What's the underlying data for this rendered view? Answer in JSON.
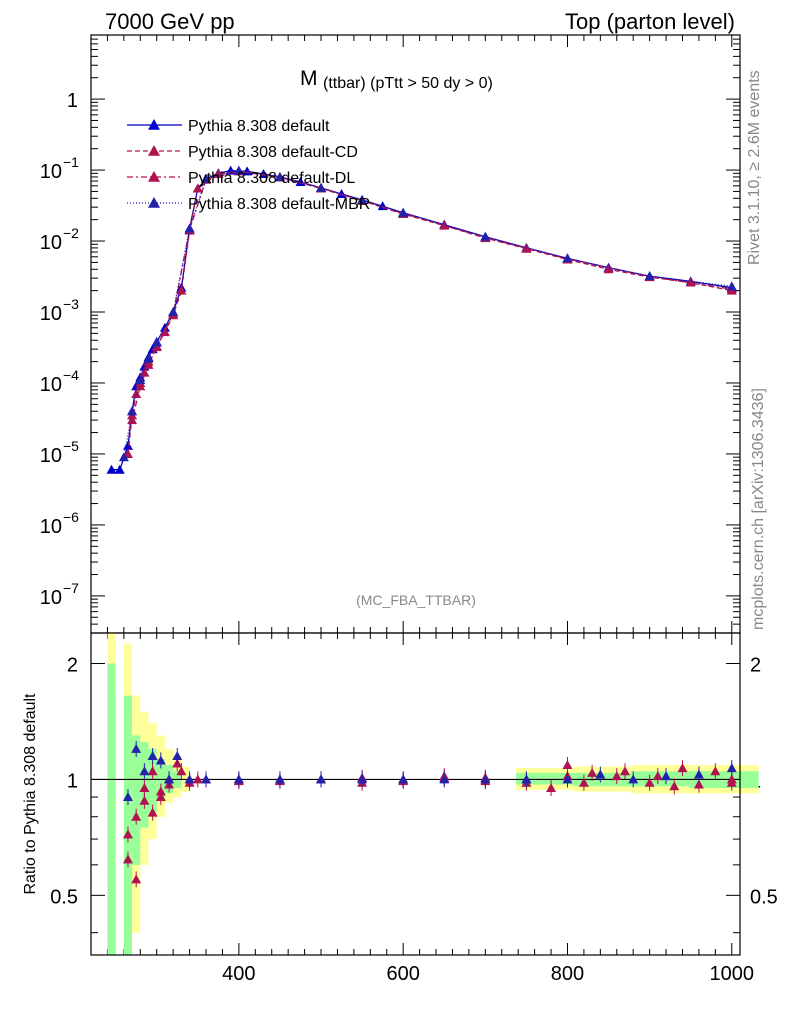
{
  "header": {
    "left": "7000 GeV pp",
    "right": "Top (parton level)"
  },
  "side_labels": {
    "rivet": "Rivet 3.1.10, ≥ 2.6M events",
    "mcplots": "mcplots.cern.ch [arXiv:1306.3436]"
  },
  "chart_data": [
    {
      "type": "line",
      "title_main": "M",
      "title_sub": "(ttbar) (pTtt > 50 dy > 0)",
      "watermark": "(MC_FBA_TTBAR)",
      "xlabel": "",
      "ylabel": "",
      "yscale": "log",
      "xlim": [
        220,
        1010
      ],
      "ylim": [
        3e-08,
        8
      ],
      "yticks": [
        {
          "v": 1e-07,
          "base": "10",
          "exp": "−7"
        },
        {
          "v": 1e-06,
          "base": "10",
          "exp": "−6"
        },
        {
          "v": 1e-05,
          "base": "10",
          "exp": "−5"
        },
        {
          "v": 0.0001,
          "base": "10",
          "exp": "−4"
        },
        {
          "v": 0.001,
          "base": "10",
          "exp": "−3"
        },
        {
          "v": 0.01,
          "base": "10",
          "exp": "−2"
        },
        {
          "v": 0.1,
          "base": "10",
          "exp": "−1"
        },
        {
          "v": 1,
          "base": "1",
          "exp": ""
        }
      ],
      "legend_position": "top-left",
      "series": [
        {
          "name": "Pythia 8.308 default",
          "color": "#0000cc",
          "dash": "none",
          "marker_fill": "#0000cc",
          "points": [
            [
              245,
              6e-06
            ],
            [
              255,
              6e-06
            ],
            [
              265,
              1.3e-05
            ],
            [
              270,
              4e-05
            ],
            [
              275,
              9e-05
            ],
            [
              280,
              0.00012
            ],
            [
              285,
              0.00017
            ],
            [
              290,
              0.00023
            ],
            [
              295,
              0.0003
            ],
            [
              300,
              0.00038
            ],
            [
              310,
              0.0006
            ],
            [
              320,
              0.001
            ],
            [
              330,
              0.0022
            ],
            [
              340,
              0.015
            ],
            [
              350,
              0.055
            ],
            [
              360,
              0.075
            ],
            [
              375,
              0.09
            ],
            [
              390,
              0.098
            ],
            [
              410,
              0.096
            ],
            [
              430,
              0.088
            ],
            [
              450,
              0.08
            ],
            [
              475,
              0.068
            ],
            [
              500,
              0.056
            ],
            [
              525,
              0.046
            ],
            [
              550,
              0.038
            ],
            [
              575,
              0.031
            ],
            [
              600,
              0.025
            ],
            [
              650,
              0.017
            ],
            [
              700,
              0.0115
            ],
            [
              750,
              0.008
            ],
            [
              800,
              0.0057
            ],
            [
              850,
              0.0042
            ],
            [
              900,
              0.0032
            ],
            [
              950,
              0.0027
            ],
            [
              1000,
              0.0022
            ]
          ]
        },
        {
          "name": "Pythia 8.308 default-CD",
          "color": "#b0134f",
          "dash": "5,3",
          "marker_fill": "#b0134f",
          "points": [
            [
              265,
              1e-05
            ],
            [
              270,
              3.5e-05
            ],
            [
              275,
              7e-05
            ],
            [
              280,
              0.0001
            ],
            [
              285,
              0.00014
            ],
            [
              290,
              0.0002
            ],
            [
              300,
              0.00033
            ],
            [
              310,
              0.00052
            ],
            [
              320,
              0.0009
            ],
            [
              330,
              0.002
            ],
            [
              340,
              0.014
            ],
            [
              350,
              0.055
            ],
            [
              375,
              0.088
            ],
            [
              400,
              0.096
            ],
            [
              450,
              0.079
            ],
            [
              500,
              0.055
            ],
            [
              550,
              0.037
            ],
            [
              600,
              0.024
            ],
            [
              650,
              0.0165
            ],
            [
              700,
              0.011
            ],
            [
              750,
              0.0078
            ],
            [
              800,
              0.0055
            ],
            [
              850,
              0.004
            ],
            [
              900,
              0.0031
            ],
            [
              950,
              0.0026
            ],
            [
              1000,
              0.002
            ]
          ]
        },
        {
          "name": "Pythia 8.308 default-DL",
          "color": "#b0134f",
          "dash": "6,3,2,3",
          "marker_fill": "#b0134f",
          "points": [
            [
              270,
              3e-05
            ],
            [
              280,
              9e-05
            ],
            [
              290,
              0.00018
            ],
            [
              300,
              0.00032
            ],
            [
              320,
              0.00095
            ],
            [
              340,
              0.0145
            ],
            [
              360,
              0.073
            ],
            [
              400,
              0.097
            ],
            [
              450,
              0.079
            ],
            [
              500,
              0.056
            ],
            [
              550,
              0.037
            ],
            [
              600,
              0.0245
            ],
            [
              700,
              0.0112
            ],
            [
              800,
              0.0056
            ],
            [
              900,
              0.00315
            ],
            [
              1000,
              0.0021
            ]
          ]
        },
        {
          "name": "Pythia 8.308 default-MBR",
          "color": "#2222aa",
          "dash": "1,2",
          "marker_fill": "#2222aa",
          "points": [
            [
              260,
              9e-06
            ],
            [
              270,
              4e-05
            ],
            [
              280,
              0.00011
            ],
            [
              290,
              0.00022
            ],
            [
              300,
              0.00037
            ],
            [
              320,
              0.001
            ],
            [
              340,
              0.015
            ],
            [
              360,
              0.075
            ],
            [
              400,
              0.098
            ],
            [
              450,
              0.08
            ],
            [
              500,
              0.056
            ],
            [
              550,
              0.038
            ],
            [
              600,
              0.025
            ],
            [
              700,
              0.0115
            ],
            [
              800,
              0.0057
            ],
            [
              900,
              0.0032
            ],
            [
              1000,
              0.0023
            ]
          ]
        }
      ]
    },
    {
      "type": "scatter",
      "ylabel": "Ratio to Pythia 8.308 default",
      "xlim": [
        220,
        1010
      ],
      "ylim": [
        0.35,
        2.4
      ],
      "yscale": "log",
      "xticks": [
        400,
        600,
        800,
        1000
      ],
      "xtick_labels": [
        "400",
        "600",
        "800",
        "1000"
      ],
      "yticks": [
        0.5,
        1,
        2
      ],
      "ytick_labels": [
        "0.5",
        "1",
        "2"
      ],
      "reference_line": 1,
      "bands": [
        {
          "x": 245,
          "y_lo": 0.35,
          "y_hi": 2.4,
          "color": "yellow"
        },
        {
          "x": 265,
          "y_lo": 0.35,
          "y_hi": 2.25,
          "color": "yellow"
        },
        {
          "x": 275,
          "y_lo": 0.4,
          "y_hi": 1.65,
          "color": "yellow"
        },
        {
          "x": 285,
          "y_lo": 0.6,
          "y_hi": 1.5,
          "color": "yellow"
        },
        {
          "x": 295,
          "y_lo": 0.7,
          "y_hi": 1.4,
          "color": "yellow"
        },
        {
          "x": 305,
          "y_lo": 0.8,
          "y_hi": 1.3,
          "color": "yellow"
        },
        {
          "x": 315,
          "y_lo": 0.87,
          "y_hi": 1.2,
          "color": "yellow"
        },
        {
          "x": 325,
          "y_lo": 0.9,
          "y_hi": 1.15,
          "color": "yellow"
        },
        {
          "x": 335,
          "y_lo": 0.93,
          "y_hi": 1.08,
          "color": "yellow"
        },
        {
          "x": 780,
          "y_lo": 0.94,
          "y_hi": 1.07,
          "color": "yellow"
        },
        {
          "x": 850,
          "y_lo": 0.93,
          "y_hi": 1.08,
          "color": "yellow"
        },
        {
          "x": 920,
          "y_lo": 0.92,
          "y_hi": 1.09,
          "color": "yellow"
        },
        {
          "x": 990,
          "y_lo": 0.92,
          "y_hi": 1.09,
          "color": "yellow"
        },
        {
          "x": 245,
          "y_lo": 0.35,
          "y_hi": 2.0,
          "color": "green"
        },
        {
          "x": 265,
          "y_lo": 0.35,
          "y_hi": 1.65,
          "color": "green"
        },
        {
          "x": 275,
          "y_lo": 0.6,
          "y_hi": 1.3,
          "color": "green"
        },
        {
          "x": 285,
          "y_lo": 0.75,
          "y_hi": 1.25,
          "color": "green"
        },
        {
          "x": 295,
          "y_lo": 0.82,
          "y_hi": 1.2,
          "color": "green"
        },
        {
          "x": 305,
          "y_lo": 0.88,
          "y_hi": 1.13,
          "color": "green"
        },
        {
          "x": 315,
          "y_lo": 0.92,
          "y_hi": 1.09,
          "color": "green"
        },
        {
          "x": 325,
          "y_lo": 0.95,
          "y_hi": 1.05,
          "color": "green"
        },
        {
          "x": 780,
          "y_lo": 0.97,
          "y_hi": 1.04,
          "color": "green"
        },
        {
          "x": 850,
          "y_lo": 0.96,
          "y_hi": 1.04,
          "color": "green"
        },
        {
          "x": 920,
          "y_lo": 0.96,
          "y_hi": 1.05,
          "color": "green"
        },
        {
          "x": 990,
          "y_lo": 0.95,
          "y_hi": 1.05,
          "color": "green"
        }
      ],
      "series": [
        {
          "name": "Pythia 8.308 default-CD",
          "color": "#b0134f",
          "points": [
            [
              265,
              0.72
            ],
            [
              275,
              0.55
            ],
            [
              285,
              0.88
            ],
            [
              295,
              0.82
            ],
            [
              305,
              0.9
            ],
            [
              315,
              1.0
            ],
            [
              325,
              1.1
            ],
            [
              340,
              0.98
            ],
            [
              360,
              1.0
            ],
            [
              400,
              0.99
            ],
            [
              450,
              0.99
            ],
            [
              500,
              1.0
            ],
            [
              550,
              0.98
            ],
            [
              600,
              0.99
            ],
            [
              650,
              1.01
            ],
            [
              700,
              0.99
            ],
            [
              750,
              0.98
            ],
            [
              780,
              0.95
            ],
            [
              800,
              1.02
            ],
            [
              820,
              0.98
            ],
            [
              860,
              1.02
            ],
            [
              900,
              0.98
            ],
            [
              930,
              0.96
            ],
            [
              960,
              0.97
            ],
            [
              1000,
              0.98
            ]
          ]
        },
        {
          "name": "Pythia 8.308 default-DL",
          "color": "#b0134f",
          "points": [
            [
              265,
              0.62
            ],
            [
              275,
              0.8
            ],
            [
              285,
              0.95
            ],
            [
              295,
              1.05
            ],
            [
              305,
              0.93
            ],
            [
              315,
              0.97
            ],
            [
              330,
              1.05
            ],
            [
              350,
              1.0
            ],
            [
              400,
              1.0
            ],
            [
              450,
              1.0
            ],
            [
              500,
              1.0
            ],
            [
              550,
              1.01
            ],
            [
              600,
              1.0
            ],
            [
              650,
              1.02
            ],
            [
              700,
              1.01
            ],
            [
              750,
              1.0
            ],
            [
              800,
              1.09
            ],
            [
              830,
              1.04
            ],
            [
              870,
              1.05
            ],
            [
              910,
              1.02
            ],
            [
              940,
              1.07
            ],
            [
              980,
              1.05
            ],
            [
              1000,
              1.0
            ]
          ]
        },
        {
          "name": "Pythia 8.308 default-MBR",
          "color": "#2222aa",
          "points": [
            [
              265,
              0.9
            ],
            [
              275,
              1.2
            ],
            [
              285,
              1.05
            ],
            [
              295,
              1.15
            ],
            [
              305,
              1.12
            ],
            [
              315,
              1.0
            ],
            [
              325,
              1.15
            ],
            [
              340,
              1.0
            ],
            [
              360,
              1.0
            ],
            [
              400,
              1.0
            ],
            [
              450,
              1.0
            ],
            [
              500,
              1.0
            ],
            [
              550,
              1.0
            ],
            [
              600,
              1.0
            ],
            [
              650,
              1.0
            ],
            [
              700,
              1.0
            ],
            [
              750,
              1.0
            ],
            [
              800,
              1.0
            ],
            [
              840,
              1.03
            ],
            [
              880,
              1.0
            ],
            [
              920,
              1.02
            ],
            [
              960,
              1.03
            ],
            [
              1000,
              1.07
            ]
          ]
        }
      ]
    }
  ]
}
